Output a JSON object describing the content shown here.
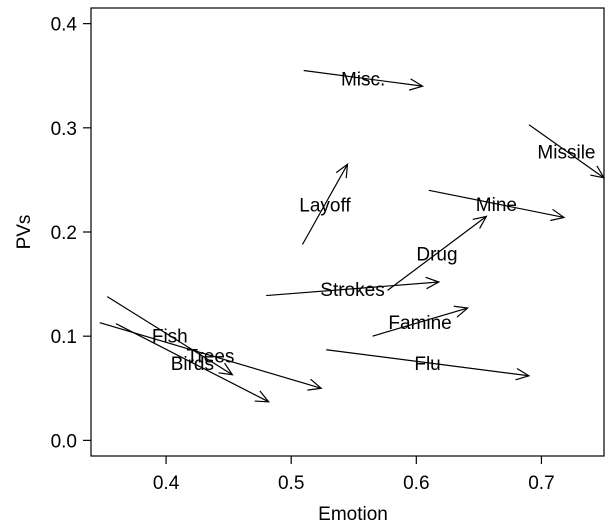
{
  "chart_data": {
    "type": "scatter",
    "title": "",
    "xlabel": "Emotion",
    "ylabel": "PVs",
    "xlim": [
      0.34,
      0.75
    ],
    "ylim": [
      -0.015,
      0.415
    ],
    "xticks": [
      "0.4",
      "0.5",
      "0.6",
      "0.7"
    ],
    "yticks": [
      "0.0",
      "0.1",
      "0.2",
      "0.3",
      "0.4"
    ],
    "grid": false,
    "legend": "none",
    "arrows": [
      {
        "label": "Misc.",
        "x0": 0.51,
        "y0": 0.355,
        "x1": 0.605,
        "y1": 0.34
      },
      {
        "label": "Missile",
        "x0": 0.69,
        "y0": 0.303,
        "x1": 0.75,
        "y1": 0.252
      },
      {
        "label": "Layoff",
        "x0": 0.509,
        "y0": 0.188,
        "x1": 0.545,
        "y1": 0.265
      },
      {
        "label": "Mine",
        "x0": 0.61,
        "y0": 0.24,
        "x1": 0.718,
        "y1": 0.214
      },
      {
        "label": "Drug",
        "x0": 0.577,
        "y0": 0.144,
        "x1": 0.656,
        "y1": 0.215
      },
      {
        "label": "Strokes",
        "x0": 0.48,
        "y0": 0.139,
        "x1": 0.618,
        "y1": 0.152
      },
      {
        "label": "Famine",
        "x0": 0.565,
        "y0": 0.1,
        "x1": 0.641,
        "y1": 0.127
      },
      {
        "label": "Fish",
        "x0": 0.353,
        "y0": 0.138,
        "x1": 0.453,
        "y1": 0.063
      },
      {
        "label": "Trees",
        "x0": 0.347,
        "y0": 0.113,
        "x1": 0.524,
        "y1": 0.05
      },
      {
        "label": "Birds",
        "x0": 0.36,
        "y0": 0.112,
        "x1": 0.482,
        "y1": 0.037
      },
      {
        "label": "Flu",
        "x0": 0.528,
        "y0": 0.087,
        "x1": 0.69,
        "y1": 0.062
      }
    ]
  }
}
